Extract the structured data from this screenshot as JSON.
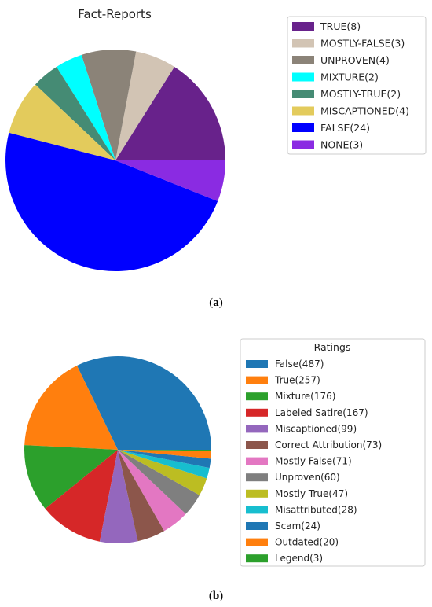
{
  "chart_data": [
    {
      "type": "pie",
      "title": "Fact-Reports",
      "caption": "a",
      "legend_title": "",
      "legend_position": "upper-right",
      "slices": [
        {
          "label": "TRUE(8)",
          "value": 8,
          "color": "#68228b"
        },
        {
          "label": "MOSTLY-FALSE(3)",
          "value": 3,
          "color": "#d2c4b4"
        },
        {
          "label": "UNPROVEN(4)",
          "value": 4,
          "color": "#8b8378"
        },
        {
          "label": "MIXTURE(2)",
          "value": 2,
          "color": "#00ffff"
        },
        {
          "label": "MOSTLY-TRUE(2)",
          "value": 2,
          "color": "#458b74"
        },
        {
          "label": "MISCAPTIONED(4)",
          "value": 4,
          "color": "#e3cb5c"
        },
        {
          "label": "FALSE(24)",
          "value": 24,
          "color": "#0000ff"
        },
        {
          "label": "NONE(3)",
          "value": 3,
          "color": "#8a2be2"
        }
      ]
    },
    {
      "type": "pie",
      "title": "",
      "caption": "b",
      "legend_title": "Ratings",
      "legend_position": "right",
      "slices": [
        {
          "label": "False(487)",
          "value": 487,
          "color": "#1f77b4"
        },
        {
          "label": "True(257)",
          "value": 257,
          "color": "#ff7f0e"
        },
        {
          "label": "Mixture(176)",
          "value": 176,
          "color": "#2ca02c"
        },
        {
          "label": "Labeled Satire(167)",
          "value": 167,
          "color": "#d62728"
        },
        {
          "label": "Miscaptioned(99)",
          "value": 99,
          "color": "#9467bd"
        },
        {
          "label": "Correct Attribution(73)",
          "value": 73,
          "color": "#8c564b"
        },
        {
          "label": "Mostly False(71)",
          "value": 71,
          "color": "#e377c2"
        },
        {
          "label": "Unproven(60)",
          "value": 60,
          "color": "#7f7f7f"
        },
        {
          "label": "Mostly True(47)",
          "value": 47,
          "color": "#bcbd22"
        },
        {
          "label": "Misattributed(28)",
          "value": 28,
          "color": "#17becf"
        },
        {
          "label": "Scam(24)",
          "value": 24,
          "color": "#1f77b4"
        },
        {
          "label": "Outdated(20)",
          "value": 20,
          "color": "#ff7f0e"
        },
        {
          "label": "Legend(3)",
          "value": 3,
          "color": "#2ca02c"
        }
      ]
    }
  ]
}
